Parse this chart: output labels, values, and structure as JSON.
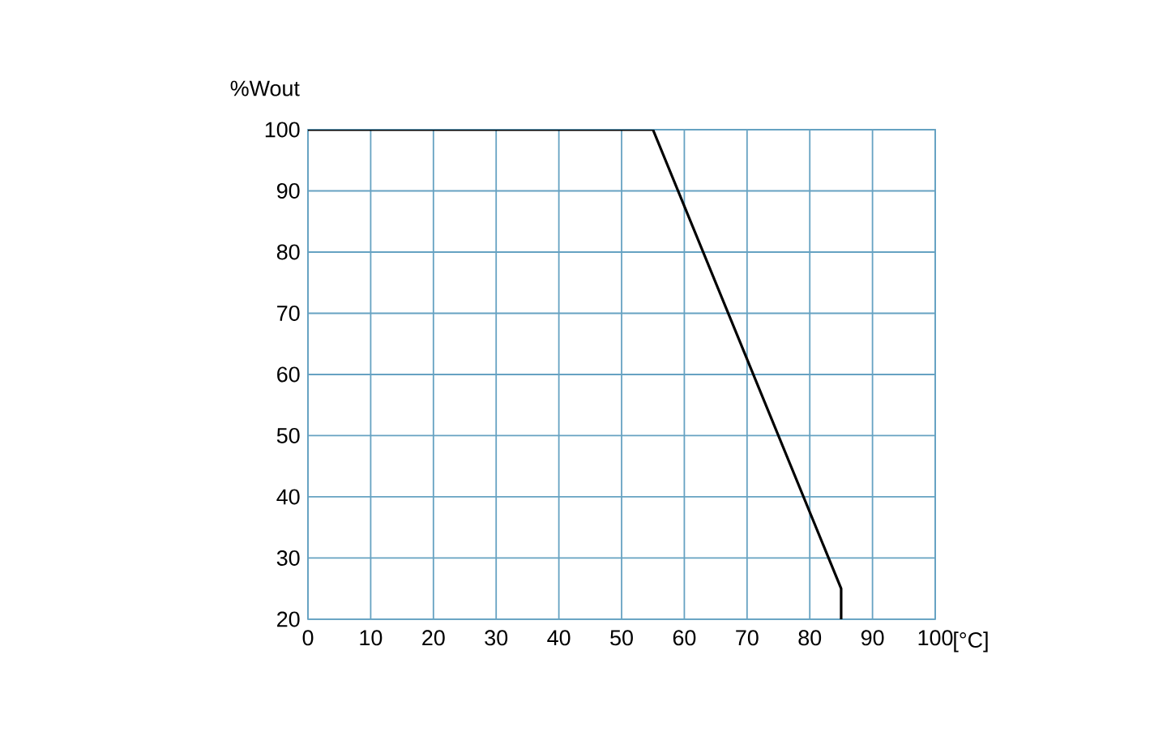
{
  "chart_data": {
    "type": "line",
    "xlabel": "[°C]",
    "ylabel": "%Wout",
    "x": [
      0,
      55,
      85,
      85
    ],
    "series": [
      {
        "color": "#000000",
        "values": [
          100,
          100,
          25,
          20
        ]
      }
    ],
    "xlim": [
      0,
      100
    ],
    "ylim": [
      20,
      100
    ],
    "xticks": [
      0,
      10,
      20,
      30,
      40,
      50,
      60,
      70,
      80,
      90,
      100
    ],
    "yticks": [
      20,
      30,
      40,
      50,
      60,
      70,
      80,
      90,
      100
    ],
    "grid": true,
    "marker": "none",
    "line_style": "solid"
  }
}
